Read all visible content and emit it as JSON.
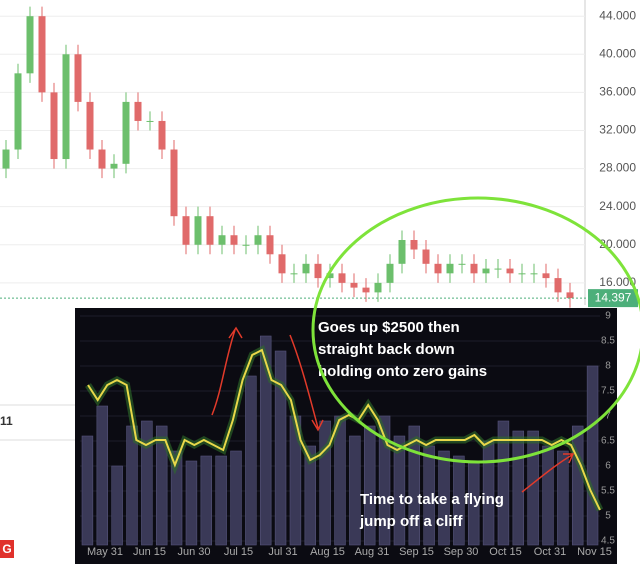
{
  "chart_data": [
    {
      "type": "candlestick",
      "open": [
        28,
        30,
        38,
        44,
        36,
        29,
        40,
        35,
        30,
        28,
        28.5,
        35,
        33,
        33,
        30,
        23,
        20,
        23,
        20,
        21,
        20,
        20,
        21,
        19,
        17,
        17,
        18,
        16.5,
        17,
        16,
        15.5,
        15,
        16,
        18,
        20.5,
        19.5,
        18,
        17,
        18,
        18,
        17,
        17.5,
        17.5,
        17,
        17,
        17,
        16.5,
        15
      ],
      "high": [
        31,
        39,
        45,
        45,
        37,
        41,
        41,
        36,
        31,
        29.5,
        36,
        36,
        34,
        34,
        31,
        24,
        24,
        24,
        22,
        22,
        21,
        22,
        22,
        20,
        18,
        19,
        19,
        18,
        18,
        17,
        16.5,
        17,
        19,
        21.5,
        21.5,
        20.5,
        19,
        19,
        19,
        19,
        18.5,
        18.5,
        18.5,
        18,
        18,
        18,
        17.5,
        16
      ],
      "low": [
        27,
        29,
        37,
        35,
        28,
        28,
        34,
        29,
        27,
        27,
        27.5,
        32,
        32,
        29,
        22,
        19,
        19,
        19,
        19,
        19,
        19,
        19,
        18,
        16,
        16,
        16,
        15.5,
        15.5,
        15,
        14.5,
        14,
        14,
        15,
        17,
        18.5,
        17,
        16,
        16,
        17,
        16,
        16,
        16.5,
        16,
        16,
        16,
        15.5,
        14,
        13.4
      ],
      "close": [
        30,
        38,
        44,
        36,
        29,
        40,
        35,
        30,
        28,
        28.5,
        35,
        33,
        33,
        30,
        23,
        20,
        23,
        20,
        21,
        20,
        20,
        21,
        19,
        17,
        17,
        18,
        16.5,
        17,
        16,
        15.5,
        15,
        16,
        18,
        20.5,
        19.5,
        18,
        17,
        18,
        18,
        17,
        17.5,
        17.5,
        17,
        17,
        17,
        16.5,
        15,
        14.4
      ],
      "up_color": "#6cbf6c",
      "down_color": "#e06a6a",
      "ylim": [
        14.2,
        45.7
      ],
      "yticks": [
        {
          "value": 44,
          "label": "44.000"
        },
        {
          "value": 40,
          "label": "40.000"
        },
        {
          "value": 36,
          "label": "36.000"
        },
        {
          "value": 32,
          "label": "32.000"
        },
        {
          "value": 28,
          "label": "28.000"
        },
        {
          "value": 24,
          "label": "24.000"
        },
        {
          "value": 20,
          "label": "20.000"
        },
        {
          "value": 16,
          "label": "16.000"
        }
      ],
      "last_price": 14.397,
      "last_price_color": "#4caf7a",
      "grid": true
    },
    {
      "type": "bar_line",
      "x_labels": [
        "May 31",
        "Jun 15",
        "Jun 30",
        "Jul 15",
        "Jul 31",
        "Aug 15",
        "Aug 31",
        "Sep 15",
        "Sep 30",
        "Oct 15",
        "Oct 31",
        "Nov 15"
      ],
      "bars": [
        6.6,
        7.2,
        6.0,
        6.8,
        6.9,
        6.8,
        6.3,
        6.1,
        6.2,
        6.2,
        6.3,
        7.8,
        8.6,
        8.3,
        7.0,
        6.4,
        6.9,
        7.0,
        6.6,
        6.8,
        7.0,
        6.6,
        6.8,
        6.4,
        6.3,
        6.2,
        6.1,
        6.5,
        6.9,
        6.7,
        6.7,
        6.4,
        6.3,
        6.8,
        8.0
      ],
      "bar_color": "#3a3957",
      "line": [
        7.62,
        7.32,
        7.62,
        7.72,
        7.62,
        6.52,
        6.42,
        6.52,
        6.52,
        6.02,
        6.52,
        6.42,
        6.52,
        6.42,
        6.32,
        6.92,
        7.72,
        8.22,
        8.32,
        7.72,
        7.62,
        7.32,
        6.52,
        6.12,
        6.22,
        6.42,
        6.92,
        7.02,
        6.92,
        7.22,
        6.92,
        6.42,
        6.32,
        6.42,
        6.52,
        6.42,
        6.52,
        6.52,
        6.52,
        6.52,
        6.62,
        6.42,
        6.52,
        6.52,
        6.52,
        6.52,
        6.52,
        6.52,
        6.42,
        6.52,
        6.42,
        6.02,
        5.52,
        5.12
      ],
      "line_color": "#e8d84a",
      "ylim": [
        4.42,
        9.08
      ],
      "yticks": [
        9,
        8.5,
        8,
        7.5,
        7,
        6.5,
        6,
        5.5,
        5,
        4.5
      ],
      "annotations": [
        [
          "Goes up $2500 then",
          "straight back down",
          "holding onto zero gains"
        ],
        [
          "Time to take a flying",
          "jump off a cliff"
        ]
      ]
    }
  ],
  "fragments": {
    "left_label": "11",
    "logo": "G"
  }
}
